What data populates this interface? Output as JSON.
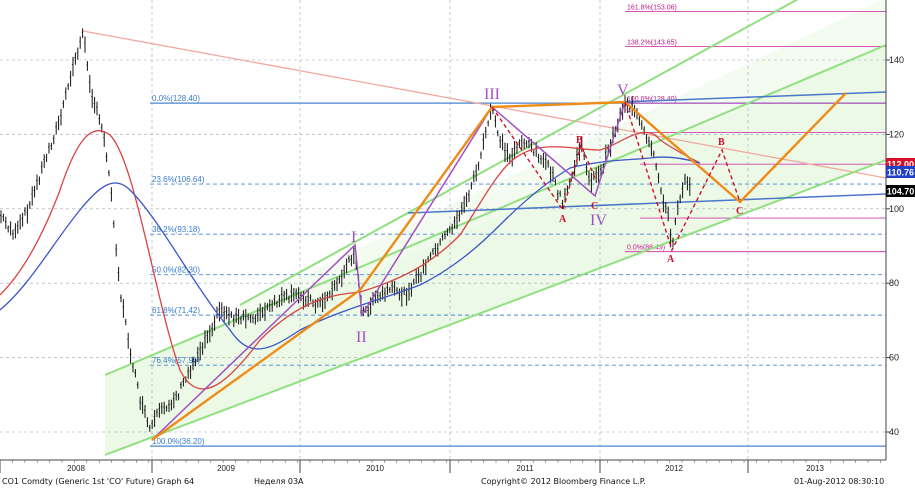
{
  "chart_data": {
    "type": "line",
    "instrument": "CO1 Comdty (Generic 1st 'CO' Future) Graph 64",
    "x_ticks": [
      "2008",
      "2009",
      "2010",
      "2011",
      "2012",
      "2013"
    ],
    "y_ticks": [
      40,
      60,
      80,
      100,
      120,
      140
    ],
    "ylim": [
      35,
      155
    ],
    "grid": true,
    "price_badges": [
      {
        "value": 112.0,
        "label": "112.00",
        "color": "#d6102a"
      },
      {
        "value": 110.76,
        "label": "110.76",
        "color": "#2040c8"
      },
      {
        "value": 104.7,
        "label": "104.70",
        "color": "#000000"
      }
    ],
    "fib_left": [
      {
        "level": 128.4,
        "label": "0.0%(128.40)"
      },
      {
        "level": 106.64,
        "label": "23.6%(106.64)"
      },
      {
        "level": 93.18,
        "label": "38.2%(93.18)"
      },
      {
        "level": 82.3,
        "label": "50.0%(82.30)"
      },
      {
        "level": 71.42,
        "label": "61.8%(71.42)"
      },
      {
        "level": 57.96,
        "label": "76.4%(57.96)"
      },
      {
        "level": 36.2,
        "label": "100.0%(36.20)"
      }
    ],
    "fib_right": [
      {
        "level": 153.06,
        "label": "161.8%(153.06)"
      },
      {
        "level": 143.65,
        "label": "138.2%(143.65)"
      },
      {
        "level": 128.4,
        "label": "100.0%(128.40)"
      },
      {
        "level": 88.49,
        "label": "0.0%(88.49)"
      }
    ],
    "wave_labels": [
      "I",
      "II",
      "III",
      "IV",
      "V"
    ],
    "abc_labels": [
      "A",
      "B",
      "C",
      "A",
      "B",
      "C"
    ]
  },
  "footer": {
    "left": "CO1 Comdty (Generic 1st 'CO' Future) Graph 64",
    "center": "Неделя 03А",
    "copyright": "Copyright© 2012 Bloomberg Finance L.P.",
    "timestamp": "01-Aug-2012 08:30:10"
  }
}
